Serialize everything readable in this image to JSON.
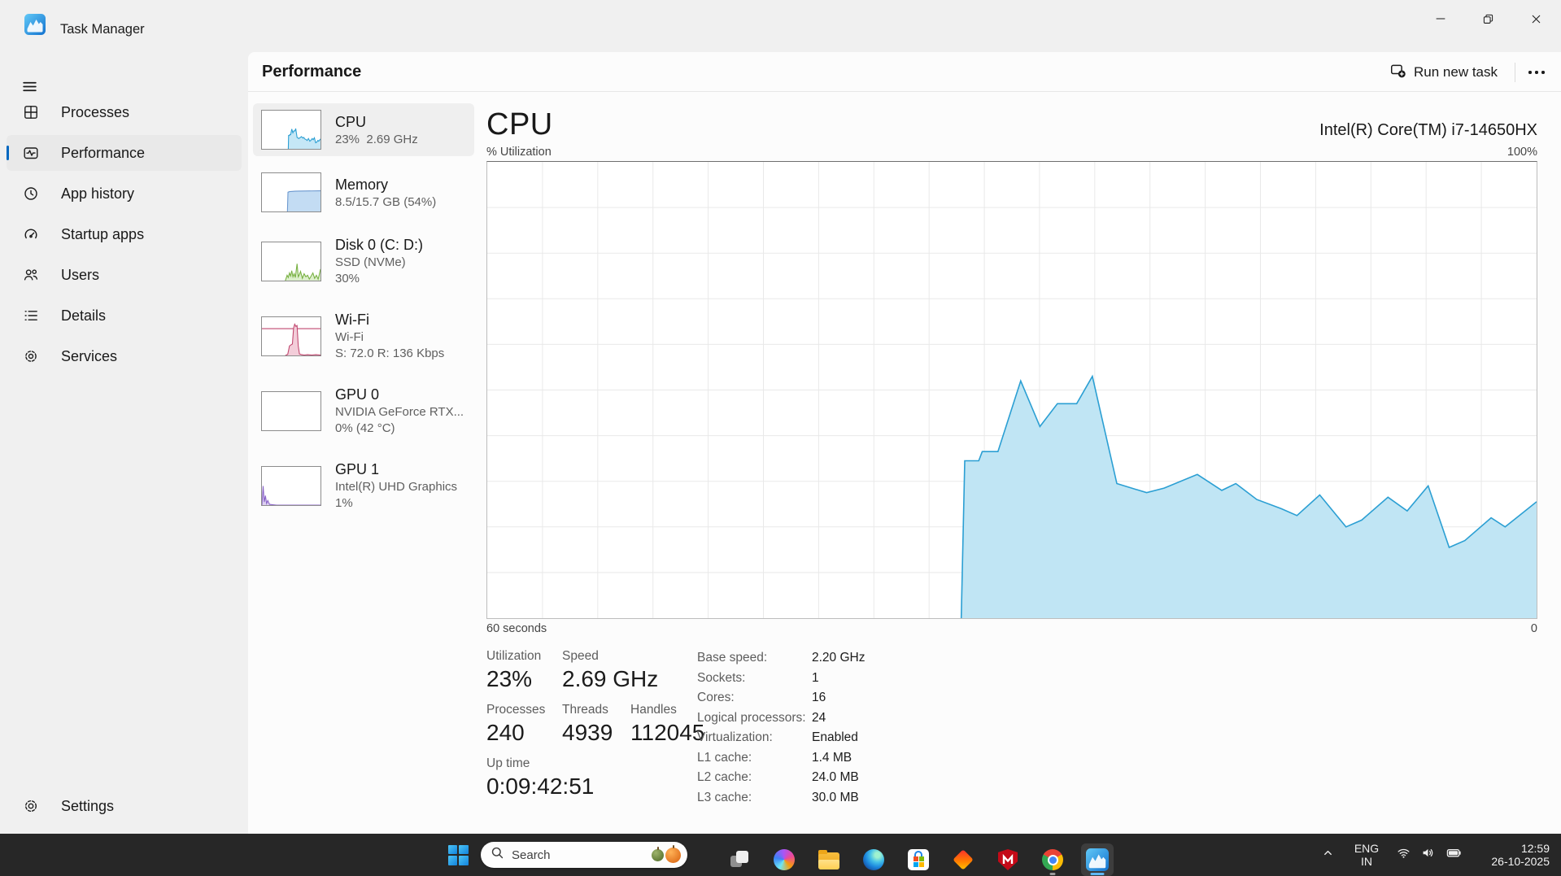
{
  "colors": {
    "accent": "#0067c0",
    "titlebar_bg": "#f0f0f0",
    "content_bg": "#fcfcfc",
    "taskbar_bg": "#272727",
    "cpu_stroke": "#2b9fd3",
    "cpu_fill": "#c0e5f4"
  },
  "window": {
    "title": "Task Manager",
    "controls": [
      "minimize",
      "maximize",
      "close"
    ]
  },
  "sidebar": {
    "items": [
      {
        "id": "processes",
        "label": "Processes",
        "icon": "processes-icon",
        "selected": false
      },
      {
        "id": "performance",
        "label": "Performance",
        "icon": "performance-icon",
        "selected": true
      },
      {
        "id": "app-history",
        "label": "App history",
        "icon": "app-history-icon",
        "selected": false
      },
      {
        "id": "startup-apps",
        "label": "Startup apps",
        "icon": "startup-apps-icon",
        "selected": false
      },
      {
        "id": "users",
        "label": "Users",
        "icon": "users-icon",
        "selected": false
      },
      {
        "id": "details",
        "label": "Details",
        "icon": "details-icon",
        "selected": false
      },
      {
        "id": "services",
        "label": "Services",
        "icon": "services-icon",
        "selected": false
      }
    ],
    "footer": {
      "id": "settings",
      "label": "Settings",
      "icon": "gear-icon"
    }
  },
  "header": {
    "title": "Performance",
    "run_new_task_label": "Run new task"
  },
  "devices": [
    {
      "id": "cpu",
      "title": "CPU",
      "lines": [
        "23%  2.69 GHz"
      ],
      "selected": true,
      "spark": {
        "stroke": "#2b9fd3",
        "fill": "#c5e7f6",
        "points": [
          [
            0.45,
            0
          ],
          [
            0.456,
            35
          ],
          [
            0.47,
            35
          ],
          [
            0.475,
            37
          ],
          [
            0.49,
            37
          ],
          [
            0.51,
            52
          ],
          [
            0.528,
            42
          ],
          [
            0.545,
            47
          ],
          [
            0.563,
            47
          ],
          [
            0.577,
            53
          ],
          [
            0.6,
            30
          ],
          [
            0.63,
            27
          ],
          [
            0.646,
            29
          ],
          [
            0.676,
            32
          ],
          [
            0.7,
            28
          ],
          [
            0.714,
            30
          ],
          [
            0.733,
            26
          ],
          [
            0.756,
            24
          ],
          [
            0.772,
            22
          ],
          [
            0.794,
            27
          ],
          [
            0.818,
            20
          ],
          [
            0.834,
            22
          ],
          [
            0.858,
            27
          ],
          [
            0.876,
            24
          ],
          [
            0.896,
            29
          ],
          [
            0.916,
            16
          ],
          [
            0.932,
            17
          ],
          [
            0.956,
            22
          ],
          [
            0.97,
            20
          ],
          [
            1,
            26
          ]
        ]
      }
    },
    {
      "id": "memory",
      "title": "Memory",
      "lines": [
        "8.5/15.7 GB (54%)"
      ],
      "selected": false,
      "spark": {
        "stroke": "#6b98cf",
        "fill": "#c3dcf3",
        "points": [
          [
            0.435,
            0
          ],
          [
            0.445,
            50.5
          ],
          [
            0.47,
            52
          ],
          [
            0.52,
            52.5
          ],
          [
            0.56,
            53
          ],
          [
            0.62,
            53.5
          ],
          [
            1,
            54
          ]
        ]
      }
    },
    {
      "id": "disk-0",
      "title": "Disk 0 (C: D:)",
      "lines": [
        "SSD (NVMe)",
        "30%"
      ],
      "selected": false,
      "spark": {
        "stroke": "#77b041",
        "fill": "#dcefcb",
        "points": [
          [
            0.4,
            0
          ],
          [
            0.43,
            14
          ],
          [
            0.45,
            8
          ],
          [
            0.47,
            20
          ],
          [
            0.49,
            12
          ],
          [
            0.51,
            26
          ],
          [
            0.53,
            10
          ],
          [
            0.55,
            18
          ],
          [
            0.57,
            8
          ],
          [
            0.6,
            44
          ],
          [
            0.62,
            10
          ],
          [
            0.64,
            16
          ],
          [
            0.66,
            24
          ],
          [
            0.69,
            6
          ],
          [
            0.72,
            18
          ],
          [
            0.75,
            10
          ],
          [
            0.78,
            14
          ],
          [
            0.81,
            4
          ],
          [
            0.84,
            12
          ],
          [
            0.87,
            20
          ],
          [
            0.9,
            6
          ],
          [
            0.93,
            14
          ],
          [
            0.96,
            4
          ],
          [
            0.98,
            16
          ],
          [
            1,
            30
          ]
        ]
      }
    },
    {
      "id": "wi-fi",
      "title": "Wi-Fi",
      "lines": [
        "Wi-Fi",
        "S: 72.0 R: 136 Kbps"
      ],
      "selected": false,
      "spark": {
        "stroke": "#c0476f",
        "fill": "#f3cdd9",
        "hline_pct": 70,
        "points": [
          [
            0.4,
            0
          ],
          [
            0.44,
            3
          ],
          [
            0.47,
            25
          ],
          [
            0.5,
            28
          ],
          [
            0.52,
            30
          ],
          [
            0.54,
            72
          ],
          [
            0.56,
            82
          ],
          [
            0.58,
            76
          ],
          [
            0.6,
            78
          ],
          [
            0.62,
            25
          ],
          [
            0.64,
            4
          ],
          [
            0.68,
            2
          ],
          [
            0.72,
            1
          ],
          [
            0.78,
            2
          ],
          [
            0.85,
            1
          ],
          [
            0.92,
            2
          ],
          [
            1,
            1
          ]
        ]
      }
    },
    {
      "id": "gpu-0",
      "title": "GPU 0",
      "lines": [
        "NVIDIA GeForce RTX...",
        "0% (42 °C)"
      ],
      "selected": false,
      "spark": {
        "stroke": "#8a64c8",
        "fill": "#ddd1f0",
        "points": []
      }
    },
    {
      "id": "gpu-1",
      "title": "GPU 1",
      "lines": [
        "Intel(R) UHD Graphics",
        "1%"
      ],
      "selected": false,
      "spark": {
        "stroke": "#8a64c8",
        "fill": "#ddd1f0",
        "points": [
          [
            0,
            0
          ],
          [
            0.02,
            50
          ],
          [
            0.04,
            8
          ],
          [
            0.06,
            25
          ],
          [
            0.08,
            4
          ],
          [
            0.1,
            12
          ],
          [
            0.13,
            2
          ],
          [
            0.18,
            1
          ],
          [
            0.25,
            0
          ],
          [
            1,
            0
          ]
        ]
      }
    }
  ],
  "cpu_panel": {
    "title": "CPU",
    "subtitle": "Intel(R) Core(TM) i7-14650HX",
    "axis_top_left": "% Utilization",
    "axis_top_right": "100%",
    "axis_bottom_left": "60 seconds",
    "axis_bottom_right": "0",
    "stats_left": [
      [
        {
          "label": "Utilization",
          "value": "23%"
        },
        {
          "label": "Speed",
          "value": "2.69 GHz"
        }
      ],
      [
        {
          "label": "Processes",
          "value": "240"
        },
        {
          "label": "Threads",
          "value": "4939"
        },
        {
          "label": "Handles",
          "value": "112045"
        }
      ],
      [
        {
          "label": "Up time",
          "value": "0:09:42:51"
        }
      ]
    ],
    "stats_right": [
      {
        "label": "Base speed:",
        "value": "2.20 GHz"
      },
      {
        "label": "Sockets:",
        "value": "1"
      },
      {
        "label": "Cores:",
        "value": "16"
      },
      {
        "label": "Logical processors:",
        "value": "24"
      },
      {
        "label": "Virtualization:",
        "value": "Enabled"
      },
      {
        "label": "L1 cache:",
        "value": "1.4 MB"
      },
      {
        "label": "L2 cache:",
        "value": "24.0 MB"
      },
      {
        "label": "L3 cache:",
        "value": "30.0 MB"
      }
    ]
  },
  "chart_data": {
    "type": "area",
    "title": "CPU % Utilization over 60 seconds",
    "xlabel": "60 seconds",
    "ylabel": "% Utilization",
    "x_range_seconds": [
      0,
      60
    ],
    "ylim": [
      0,
      100
    ],
    "y_max_label": "100%",
    "grid": {
      "on": true,
      "vertical_divisions": 19,
      "horizontal_divisions": 10
    },
    "legend": "none",
    "series": [
      {
        "name": "CPU utilization (%)",
        "color": "#2b9fd3",
        "fill": "#c0e5f4",
        "points": [
          [
            27.1,
            0
          ],
          [
            27.3,
            34.5
          ],
          [
            28.1,
            34.5
          ],
          [
            28.3,
            36.5
          ],
          [
            29.2,
            36.5
          ],
          [
            30.5,
            52
          ],
          [
            31.6,
            42
          ],
          [
            32.6,
            47
          ],
          [
            33.7,
            47
          ],
          [
            34.6,
            53
          ],
          [
            36,
            29.5
          ],
          [
            37.7,
            27.5
          ],
          [
            38.7,
            28.5
          ],
          [
            40.6,
            31.5
          ],
          [
            42,
            28
          ],
          [
            42.8,
            29.5
          ],
          [
            44,
            26
          ],
          [
            45.4,
            24
          ],
          [
            46.3,
            22.5
          ],
          [
            47.6,
            27
          ],
          [
            49.1,
            20
          ],
          [
            50,
            21.5
          ],
          [
            51.5,
            26.5
          ],
          [
            52.6,
            23.5
          ],
          [
            53.8,
            29
          ],
          [
            55,
            15.5
          ],
          [
            55.9,
            17
          ],
          [
            57.4,
            22
          ],
          [
            58.2,
            20
          ],
          [
            60,
            25.5
          ]
        ]
      }
    ]
  },
  "taskbar": {
    "search": {
      "placeholder": "Search",
      "decorations": [
        "green-pumpkin",
        "orange-pumpkin"
      ]
    },
    "apps": [
      {
        "id": "task-view",
        "running": false,
        "active": false
      },
      {
        "id": "copilot",
        "running": false,
        "active": false
      },
      {
        "id": "file-explorer",
        "running": false,
        "active": false
      },
      {
        "id": "edge",
        "running": false,
        "active": false
      },
      {
        "id": "microsoft-store",
        "running": false,
        "active": false
      },
      {
        "id": "diamond-app",
        "running": false,
        "active": false
      },
      {
        "id": "mcafee",
        "running": false,
        "active": false
      },
      {
        "id": "chrome",
        "running": true,
        "active": false
      },
      {
        "id": "task-manager",
        "running": true,
        "active": true
      }
    ],
    "tray": {
      "lang_line1": "ENG",
      "lang_line2": "IN",
      "time": "12:59",
      "date": "26-10-2025",
      "icons": [
        "chevron-up-icon",
        "wifi-icon",
        "volume-icon",
        "battery-icon"
      ]
    }
  },
  "icons": {
    "task-manager-logo": "blue rounded square with white waveform",
    "hamburger-icon": "three horizontal lines",
    "processes-icon": "window panes",
    "performance-icon": "pulse in rounded rect",
    "app-history-icon": "clock",
    "startup-apps-icon": "speedometer",
    "users-icon": "two people",
    "details-icon": "bulleted list",
    "services-icon": "cog",
    "gear-icon": "cog",
    "run-new-task-icon": "window with plus circle",
    "more-icon": "three dots",
    "search-icon": "magnifier",
    "minimize-icon": "line",
    "maximize-icon": "overlapping squares",
    "close-icon": "cross"
  }
}
